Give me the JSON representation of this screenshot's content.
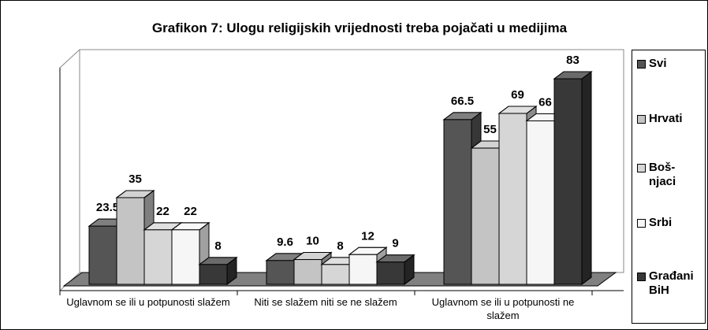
{
  "chart_data": {
    "type": "bar3d",
    "title": "Grafikon 7: Ulogu religijskih vrijednosti treba pojačati u medijima",
    "categories": [
      "Uglavnom se ili u potpunosti slažem",
      "Niti se slažem niti se ne slažem",
      "Uglavnom se ili u potpunosti ne slažem"
    ],
    "series": [
      {
        "name": "Svi",
        "color": "#555555",
        "values": [
          23.5,
          9.6,
          66.5
        ]
      },
      {
        "name": "Hrvati",
        "color": "#c4c4c4",
        "values": [
          35,
          10,
          55
        ]
      },
      {
        "name": "Boš-njaci",
        "color": "#d6d6d6",
        "values": [
          22,
          8,
          69
        ]
      },
      {
        "name": "Srbi",
        "color": "#f6f6f6",
        "values": [
          22,
          12,
          66
        ]
      },
      {
        "name": "Građani BiH",
        "color": "#383838",
        "values": [
          8,
          9,
          83
        ]
      }
    ],
    "ylim": [
      0,
      90
    ],
    "legend": "right"
  }
}
